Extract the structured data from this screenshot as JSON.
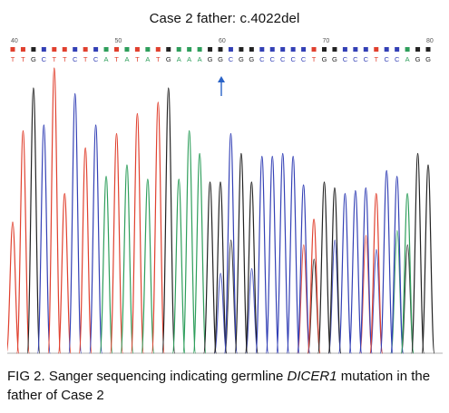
{
  "figure": {
    "title": "Case 2 father: c.4022del",
    "caption_label": "FIG 2.",
    "caption_text_before": "Sanger sequencing indicating germline ",
    "caption_gene": "DICER1",
    "caption_text_after": " mutation in the father of Case 2"
  },
  "sequence": {
    "position_labels": [
      "40",
      "50",
      "60",
      "70",
      "80"
    ],
    "bases": "TTGCTTCTCATATATGAAAGGCGGCCCCCTGGCCCTCCAGG",
    "mutation_marker": "c.4022del"
  },
  "colors": {
    "A": "#2e9e5b",
    "C": "#3340b5",
    "G": "#222222",
    "T": "#e0402e",
    "arrow": "#2a63c7"
  }
}
